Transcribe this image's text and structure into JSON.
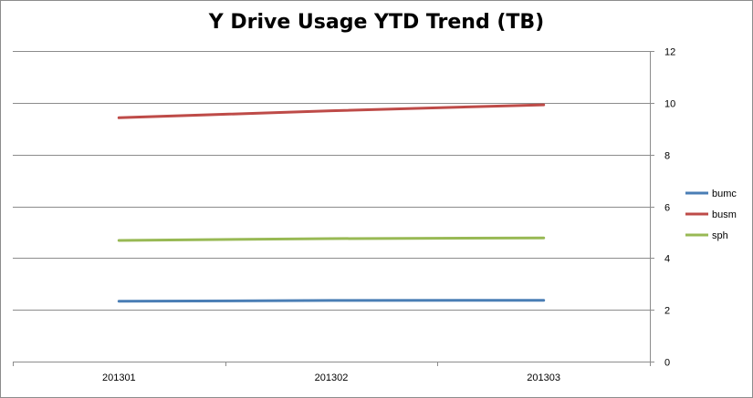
{
  "chart_data": {
    "type": "line",
    "title": "Y Drive Usage YTD Trend (TB)",
    "xlabel": "",
    "ylabel": "",
    "categories": [
      "201301",
      "201302",
      "201303"
    ],
    "series": [
      {
        "name": "bumc",
        "values": [
          2.33,
          2.36,
          2.37
        ],
        "color": "#4a7eb5"
      },
      {
        "name": "busm",
        "values": [
          9.42,
          9.69,
          9.92
        ],
        "color": "#be4b48"
      },
      {
        "name": "sph",
        "values": [
          4.68,
          4.75,
          4.78
        ],
        "color": "#98b954"
      }
    ],
    "ylim": [
      0,
      12
    ],
    "yticks": [
      "0",
      "2",
      "4",
      "6",
      "8",
      "10",
      "12"
    ],
    "y_axis_side": "right",
    "grid": true,
    "legend_position": "right"
  }
}
